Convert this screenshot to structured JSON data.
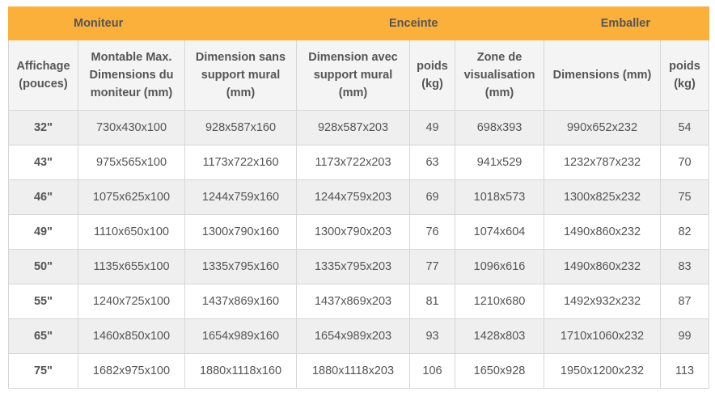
{
  "groups": {
    "moniteur": "Moniteur",
    "enceinte": "Enceinte",
    "emballer": "Emballer"
  },
  "headers": [
    "Affichage (pouces)",
    "Montable Max. Dimensions du moniteur (mm)",
    "Dimension sans support mural (mm)",
    "Dimension avec support mural (mm)",
    "poids (kg)",
    "Zone de visualisation (mm)",
    "Dimensions (mm)",
    "poids (kg)"
  ],
  "rows": [
    [
      "32\"",
      "730x430x100",
      "928x587x160",
      "928x587x203",
      "49",
      "698x393",
      "990x652x232",
      "54"
    ],
    [
      "43\"",
      "975x565x100",
      "1173x722x160",
      "1173x722x203",
      "63",
      "941x529",
      "1232x787x232",
      "70"
    ],
    [
      "46\"",
      "1075x625x100",
      "1244x759x160",
      "1244x759x203",
      "69",
      "1018x573",
      "1300x825x232",
      "75"
    ],
    [
      "49\"",
      "1110x650x100",
      "1300x790x160",
      "1300x790x203",
      "76",
      "1074x604",
      "1490x860x232",
      "82"
    ],
    [
      "50\"",
      "1135x655x100",
      "1335x795x160",
      "1335x795x203",
      "77",
      "1096x616",
      "1490x860x232",
      "83"
    ],
    [
      "55\"",
      "1240x725x100",
      "1437x869x160",
      "1437x869x203",
      "81",
      "1210x680",
      "1492x932x232",
      "87"
    ],
    [
      "65\"",
      "1460x850x100",
      "1654x989x160",
      "1654x989x203",
      "93",
      "1428x803",
      "1710x1060x232",
      "99"
    ],
    [
      "75\"",
      "1682x975x100",
      "1880x1118x160",
      "1880x1118x203",
      "106",
      "1650x928",
      "1950x1200x232",
      "113"
    ]
  ],
  "colors": {
    "header_band": "#fbb03b",
    "header_row": "#f4f4f4",
    "row_odd": "#efefef",
    "row_even": "#ffffff",
    "text": "#555555"
  }
}
